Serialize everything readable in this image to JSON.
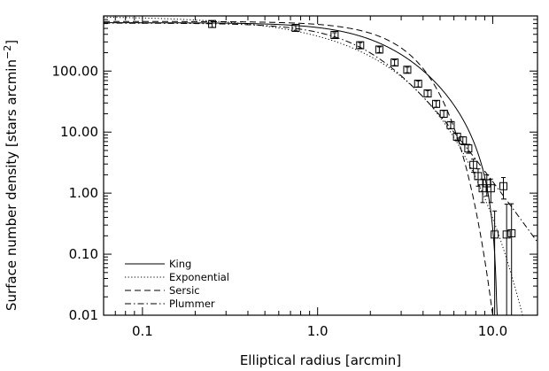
{
  "chart_data": {
    "type": "scatter",
    "xscale": "log",
    "yscale": "log",
    "xlim": [
      0.06,
      18
    ],
    "ylim": [
      0.01,
      800
    ],
    "xlabel": "Elliptical radius [arcmin]",
    "ylabel_main": "Surface number density [stars arcmin",
    "ylabel_sup": "−2",
    "ylabel_end": "]",
    "xticks": [
      {
        "value": 0.1,
        "label": "0.1"
      },
      {
        "value": 1,
        "label": "1.0"
      },
      {
        "value": 10,
        "label": "10.0"
      }
    ],
    "yticks": [
      {
        "value": 0.01,
        "label": "0.01"
      },
      {
        "value": 0.1,
        "label": "0.10"
      },
      {
        "value": 1,
        "label": "1.00"
      },
      {
        "value": 10,
        "label": "10.00"
      },
      {
        "value": 100,
        "label": "100.00"
      }
    ],
    "legend_position": "bottom-left",
    "data_points": [
      {
        "x": 0.25,
        "y": 590,
        "err": 70
      },
      {
        "x": 0.75,
        "y": 510,
        "err": 45
      },
      {
        "x": 1.25,
        "y": 390,
        "err": 35
      },
      {
        "x": 1.75,
        "y": 265,
        "err": 28
      },
      {
        "x": 2.25,
        "y": 225,
        "err": 24
      },
      {
        "x": 2.75,
        "y": 138,
        "err": 15
      },
      {
        "x": 3.25,
        "y": 105,
        "err": 11
      },
      {
        "x": 3.75,
        "y": 62,
        "err": 7
      },
      {
        "x": 4.25,
        "y": 43,
        "err": 5
      },
      {
        "x": 4.75,
        "y": 29,
        "err": 3.5
      },
      {
        "x": 5.25,
        "y": 20,
        "err": 2.5
      },
      {
        "x": 5.75,
        "y": 13,
        "err": 1.7
      },
      {
        "x": 6.25,
        "y": 8.4,
        "err": 1.2
      },
      {
        "x": 6.75,
        "y": 7.3,
        "err": 1.1
      },
      {
        "x": 7.25,
        "y": 5.4,
        "err": 0.9
      },
      {
        "x": 7.75,
        "y": 2.9,
        "err": 0.7
      },
      {
        "x": 8.25,
        "y": 1.9,
        "err": 0.6
      },
      {
        "x": 8.75,
        "y": 1.2,
        "err": 0.5
      },
      {
        "x": 9.25,
        "y": 1.45,
        "err": 0.55
      },
      {
        "x": 9.75,
        "y": 1.2,
        "err": 0.5
      },
      {
        "x": 10.25,
        "y": 0.21,
        "err": 0.3
      },
      {
        "x": 11.5,
        "y": 1.3,
        "err": 0.5
      },
      {
        "x": 12.0,
        "y": 0.21,
        "err": 0.45
      },
      {
        "x": 12.8,
        "y": 0.22,
        "err": 0.45
      }
    ],
    "series": [
      {
        "name": "King",
        "dash": "",
        "model": "king",
        "params": {
          "n0": 620,
          "rc": 2.6,
          "rt": 10.7
        }
      },
      {
        "name": "Exponential",
        "dash": "1.2,2.4",
        "model": "exponential",
        "params": {
          "n0": 800,
          "rh": 2.2,
          "bg": 0
        }
      },
      {
        "name": "Sersic",
        "dash": "7,4",
        "model": "sersic",
        "params": {
          "n0": 650,
          "rh": 3.0,
          "m": 0.5
        }
      },
      {
        "name": "Plummer",
        "dash": "7,3,1.5,3",
        "model": "plummer",
        "params": {
          "n0": 610,
          "a": 2.3
        }
      }
    ]
  }
}
